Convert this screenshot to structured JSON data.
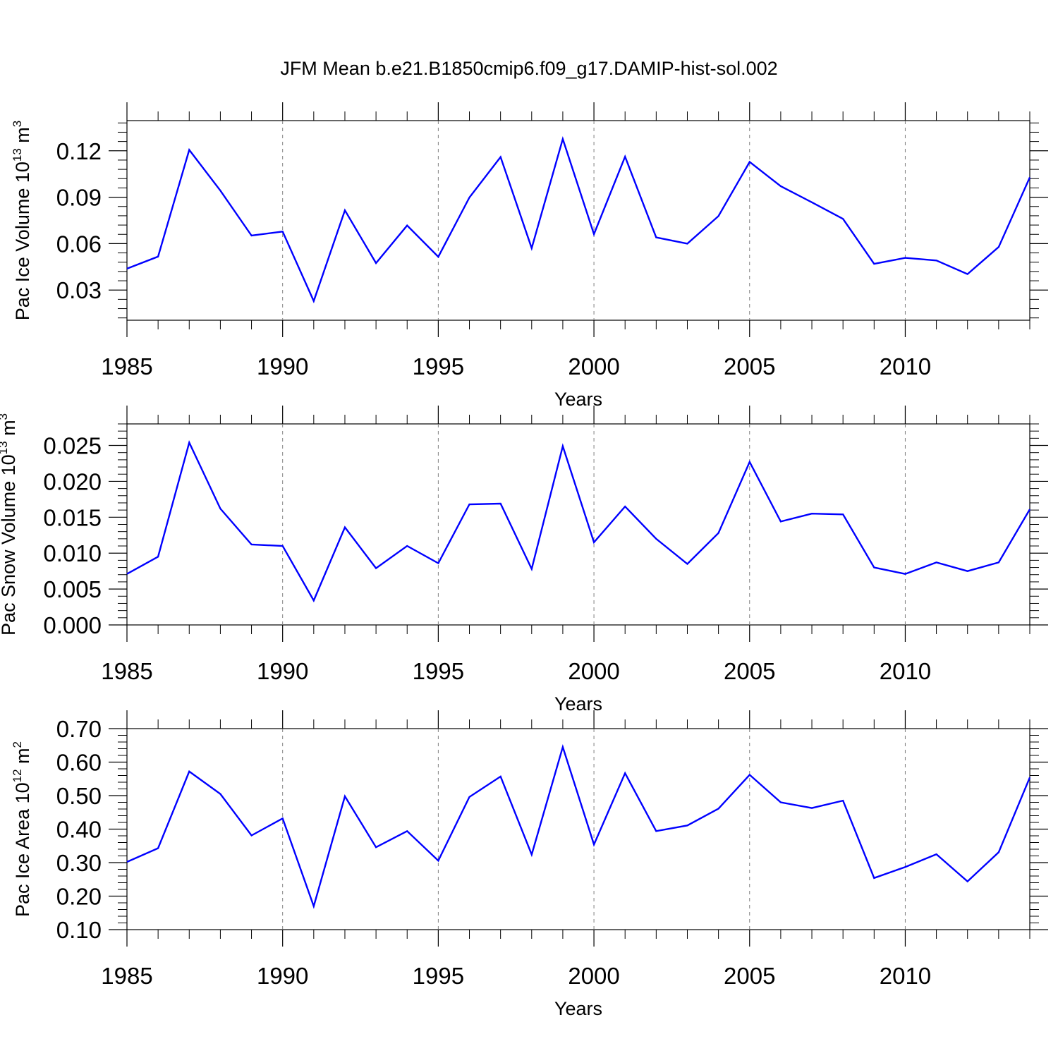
{
  "title": "JFM Mean b.e21.B1850cmip6.f09_g17.DAMIP-hist-sol.002",
  "colors": {
    "line": "#0000ff",
    "axis": "#000000",
    "grid": "#808080"
  },
  "chart_data": [
    {
      "type": "line",
      "title": "JFM Mean b.e21.B1850cmip6.f09_g17.DAMIP-hist-sol.002",
      "xlabel": "Years",
      "ylabel": {
        "text": "Pac Ice Volume 10",
        "exp": "13",
        "unit": " m",
        "unit_exp": "3"
      },
      "xlim": [
        1985,
        2014
      ],
      "ylim": [
        0.0105,
        0.1395
      ],
      "xticks": [
        1985,
        1990,
        1995,
        2000,
        2005,
        2010
      ],
      "xtick_labels": [
        "1985",
        "1990",
        "1995",
        "2000",
        "2005",
        "2010"
      ],
      "yticks": [
        0.03,
        0.06,
        0.09,
        0.12
      ],
      "ytick_labels": [
        "0.03",
        "0.06",
        "0.09",
        "0.12"
      ],
      "grid": "vertical dashed",
      "x": [
        1985,
        1986,
        1987,
        1988,
        1989,
        1990,
        1991,
        1992,
        1993,
        1994,
        1995,
        1996,
        1997,
        1998,
        1999,
        2000,
        2001,
        2002,
        2003,
        2004,
        2005,
        2006,
        2007,
        2008,
        2009,
        2010,
        2011,
        2012,
        2013,
        2014
      ],
      "series": [
        {
          "name": "Pac Ice Volume",
          "values": [
            0.0438,
            0.0516,
            0.1206,
            0.0943,
            0.0652,
            0.0678,
            0.0229,
            0.0815,
            0.0474,
            0.0717,
            0.0515,
            0.0898,
            0.116,
            0.0571,
            0.1276,
            0.0661,
            0.1162,
            0.064,
            0.06,
            0.0778,
            0.1128,
            0.0971,
            0.0867,
            0.076,
            0.0469,
            0.0508,
            0.0491,
            0.0403,
            0.0578,
            0.1028
          ]
        }
      ]
    },
    {
      "type": "line",
      "xlabel": "Years",
      "ylabel": {
        "text": "Pac Snow Volume 10",
        "exp": "13",
        "unit": " m",
        "unit_exp": "3"
      },
      "xlim": [
        1985,
        2014
      ],
      "ylim": [
        0.0,
        0.028
      ],
      "xticks": [
        1985,
        1990,
        1995,
        2000,
        2005,
        2010
      ],
      "xtick_labels": [
        "1985",
        "1990",
        "1995",
        "2000",
        "2005",
        "2010"
      ],
      "yticks": [
        0.0,
        0.005,
        0.01,
        0.015,
        0.02,
        0.025
      ],
      "ytick_labels": [
        "0.000",
        "0.005",
        "0.010",
        "0.015",
        "0.020",
        "0.025"
      ],
      "grid": "vertical dashed",
      "x": [
        1985,
        1986,
        1987,
        1988,
        1989,
        1990,
        1991,
        1992,
        1993,
        1994,
        1995,
        1996,
        1997,
        1998,
        1999,
        2000,
        2001,
        2002,
        2003,
        2004,
        2005,
        2006,
        2007,
        2008,
        2009,
        2010,
        2011,
        2012,
        2013,
        2014
      ],
      "series": [
        {
          "name": "Pac Snow Volume",
          "values": [
            0.0071,
            0.0095,
            0.0254,
            0.0162,
            0.0112,
            0.011,
            0.0034,
            0.0136,
            0.0079,
            0.011,
            0.0086,
            0.0168,
            0.0169,
            0.0078,
            0.0249,
            0.0115,
            0.0165,
            0.012,
            0.0085,
            0.0128,
            0.0227,
            0.0144,
            0.0155,
            0.0154,
            0.008,
            0.0071,
            0.0087,
            0.0075,
            0.0087,
            0.0161
          ]
        }
      ]
    },
    {
      "type": "line",
      "xlabel": "Years",
      "ylabel": {
        "text": "Pac Ice Area 10",
        "exp": "12",
        "unit": " m",
        "unit_exp": "2"
      },
      "xlim": [
        1985,
        2014
      ],
      "ylim": [
        0.1,
        0.7
      ],
      "xticks": [
        1985,
        1990,
        1995,
        2000,
        2005,
        2010
      ],
      "xtick_labels": [
        "1985",
        "1990",
        "1995",
        "2000",
        "2005",
        "2010"
      ],
      "yticks": [
        0.1,
        0.2,
        0.3,
        0.4,
        0.5,
        0.6,
        0.7
      ],
      "ytick_labels": [
        "0.10",
        "0.20",
        "0.30",
        "0.40",
        "0.50",
        "0.60",
        "0.70"
      ],
      "grid": "vertical dashed",
      "x": [
        1985,
        1986,
        1987,
        1988,
        1989,
        1990,
        1991,
        1992,
        1993,
        1994,
        1995,
        1996,
        1997,
        1998,
        1999,
        2000,
        2001,
        2002,
        2003,
        2004,
        2005,
        2006,
        2007,
        2008,
        2009,
        2010,
        2011,
        2012,
        2013,
        2014
      ],
      "series": [
        {
          "name": "Pac Ice Area",
          "values": [
            0.302,
            0.343,
            0.572,
            0.505,
            0.381,
            0.432,
            0.17,
            0.498,
            0.346,
            0.394,
            0.306,
            0.496,
            0.557,
            0.324,
            0.645,
            0.354,
            0.567,
            0.394,
            0.411,
            0.461,
            0.562,
            0.48,
            0.463,
            0.485,
            0.254,
            0.287,
            0.325,
            0.244,
            0.331,
            0.554
          ]
        }
      ]
    }
  ]
}
